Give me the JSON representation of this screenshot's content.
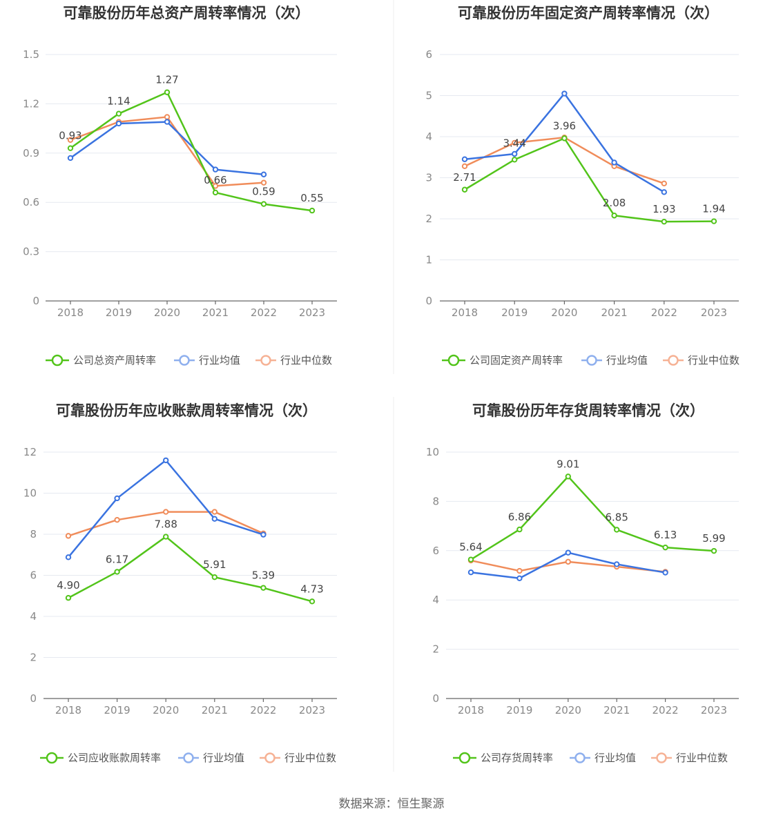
{
  "source": "数据来源：恒生聚源",
  "colors": {
    "company": "#52c41a",
    "avg": "#3a73e0",
    "median": "#f08c5a"
  },
  "chart_data": [
    {
      "type": "line",
      "title": "可靠股份历年总资产周转率情况（次）",
      "categories": [
        "2018",
        "2019",
        "2020",
        "2021",
        "2022",
        "2023"
      ],
      "ylim": [
        0,
        1.5
      ],
      "yticks": [
        0,
        0.3,
        0.6,
        0.9,
        1.2,
        1.5
      ],
      "ytick_labels": [
        "0",
        "0.3",
        "0.6",
        "0.9",
        "1.2",
        "1.5"
      ],
      "grid": true,
      "legend_position": "bottom",
      "series": [
        {
          "name": "公司总资产周转率",
          "color": "#52c41a",
          "values": [
            0.93,
            1.14,
            1.27,
            0.66,
            0.59,
            0.55
          ],
          "labels": [
            "0.93",
            "1.14",
            "1.27",
            "0.66",
            "0.59",
            "0.55"
          ]
        },
        {
          "name": "行业均值",
          "color": "#3a73e0",
          "values": [
            0.87,
            1.08,
            1.09,
            0.8,
            0.77,
            null
          ]
        },
        {
          "name": "行业中位数",
          "color": "#f08c5a",
          "values": [
            0.98,
            1.09,
            1.12,
            0.7,
            0.72,
            null
          ]
        }
      ]
    },
    {
      "type": "line",
      "title": "可靠股份历年固定资产周转率情况（次）",
      "categories": [
        "2018",
        "2019",
        "2020",
        "2021",
        "2022",
        "2023"
      ],
      "ylim": [
        0,
        6
      ],
      "yticks": [
        0,
        1,
        2,
        3,
        4,
        5,
        6
      ],
      "ytick_labels": [
        "0",
        "1",
        "2",
        "3",
        "4",
        "5",
        "6"
      ],
      "grid": true,
      "legend_position": "bottom",
      "series": [
        {
          "name": "公司固定资产周转率",
          "color": "#52c41a",
          "values": [
            2.71,
            3.44,
            3.96,
            2.08,
            1.93,
            1.94
          ],
          "labels": [
            "2.71",
            "3.44",
            "3.96",
            "2.08",
            "1.93",
            "1.94"
          ]
        },
        {
          "name": "行业均值",
          "color": "#3a73e0",
          "values": [
            3.45,
            3.58,
            5.05,
            3.37,
            2.65,
            null
          ]
        },
        {
          "name": "行业中位数",
          "color": "#f08c5a",
          "values": [
            3.28,
            3.85,
            3.98,
            3.28,
            2.86,
            null
          ]
        }
      ]
    },
    {
      "type": "line",
      "title": "可靠股份历年应收账款周转率情况（次）",
      "categories": [
        "2018",
        "2019",
        "2020",
        "2021",
        "2022",
        "2023"
      ],
      "ylim": [
        0,
        12
      ],
      "yticks": [
        0,
        2,
        4,
        6,
        8,
        10,
        12
      ],
      "ytick_labels": [
        "0",
        "2",
        "4",
        "6",
        "8",
        "10",
        "12"
      ],
      "grid": true,
      "legend_position": "bottom",
      "series": [
        {
          "name": "公司应收账款周转率",
          "color": "#52c41a",
          "values": [
            4.9,
            6.17,
            7.88,
            5.91,
            5.39,
            4.73
          ],
          "labels": [
            "4.90",
            "6.17",
            "7.88",
            "5.91",
            "5.39",
            "4.73"
          ]
        },
        {
          "name": "行业均值",
          "color": "#3a73e0",
          "values": [
            6.88,
            9.75,
            11.6,
            8.75,
            7.98,
            null
          ]
        },
        {
          "name": "行业中位数",
          "color": "#f08c5a",
          "values": [
            7.92,
            8.7,
            9.09,
            9.09,
            8.04,
            null
          ]
        }
      ]
    },
    {
      "type": "line",
      "title": "可靠股份历年存货周转率情况（次）",
      "categories": [
        "2018",
        "2019",
        "2020",
        "2021",
        "2022",
        "2023"
      ],
      "ylim": [
        0,
        10
      ],
      "yticks": [
        0,
        2,
        4,
        6,
        8,
        10
      ],
      "ytick_labels": [
        "0",
        "2",
        "4",
        "6",
        "8",
        "10"
      ],
      "grid": true,
      "legend_position": "bottom",
      "series": [
        {
          "name": "公司存货周转率",
          "color": "#52c41a",
          "values": [
            5.64,
            6.86,
            9.01,
            6.85,
            6.13,
            5.99
          ],
          "labels": [
            "5.64",
            "6.86",
            "9.01",
            "6.85",
            "6.13",
            "5.99"
          ]
        },
        {
          "name": "行业均值",
          "color": "#3a73e0",
          "values": [
            5.12,
            4.88,
            5.92,
            5.45,
            5.11,
            null
          ]
        },
        {
          "name": "行业中位数",
          "color": "#f08c5a",
          "values": [
            5.6,
            5.18,
            5.55,
            5.35,
            5.14,
            null
          ]
        }
      ]
    }
  ]
}
